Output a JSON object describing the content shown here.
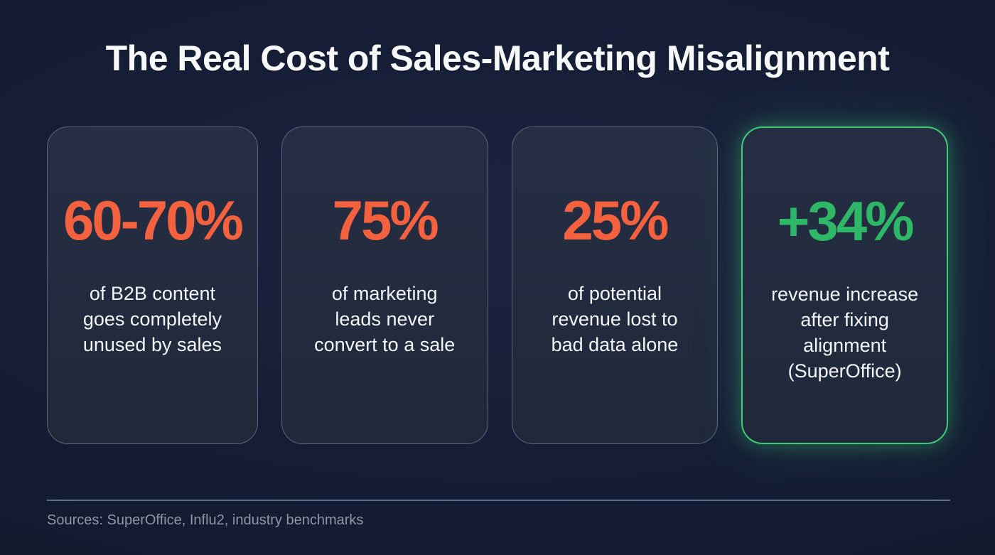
{
  "title": "The Real Cost of Sales-Marketing Misalignment",
  "cards": [
    {
      "value": "60-70%",
      "description": "of B2B content goes completely unused by sales",
      "lines": [
        "of B2B content",
        "goes completely",
        "unused by sales"
      ],
      "accent": "#f4613f",
      "highlighted": false
    },
    {
      "value": "75%",
      "description": "of marketing leads never convert to a sale",
      "lines": [
        "of marketing",
        "leads never",
        "convert to a sale"
      ],
      "accent": "#f4613f",
      "highlighted": false
    },
    {
      "value": "25%",
      "description": "of potential revenue lost to bad data alone",
      "lines": [
        "of potential",
        "revenue lost to",
        "bad data alone"
      ],
      "accent": "#f4613f",
      "highlighted": false
    },
    {
      "value": "+34%",
      "description": "revenue increase after fixing alignment (SuperOffice)",
      "lines": [
        "revenue increase",
        "after fixing",
        "alignment",
        "(SuperOffice)"
      ],
      "accent": "#2eb766",
      "highlighted": true
    }
  ],
  "footer": {
    "sources": "Sources: SuperOffice, Influ2, industry benchmarks"
  },
  "colors": {
    "background": "#161e36",
    "card_background": "#222a3e",
    "card_border": "#5a6680",
    "highlight_border": "#3ecb78",
    "negative_accent": "#f4613f",
    "positive_accent": "#2eb766",
    "text_primary": "#f2f4f8",
    "text_muted": "#8d96a6",
    "divider": "#5c6e8e"
  },
  "chart_data": {
    "type": "table",
    "title": "The Real Cost of Sales-Marketing Misalignment",
    "categories": [
      "of B2B content goes completely unused by sales",
      "of marketing leads never convert to a sale",
      "of potential revenue lost to bad data alone",
      "revenue increase after fixing alignment (SuperOffice)"
    ],
    "values": [
      "60-70%",
      "75%",
      "25%",
      "+34%"
    ],
    "annotations": [
      "Sources: SuperOffice, Influ2, industry benchmarks"
    ]
  }
}
